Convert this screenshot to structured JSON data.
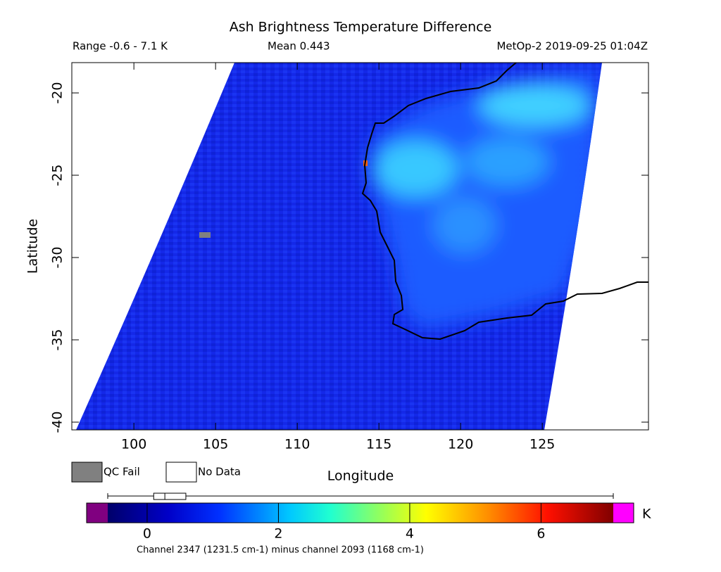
{
  "chart_data": {
    "type": "map",
    "title": "Ash Brightness Temperature Difference",
    "range_label": "Range -0.6 - 7.1 K",
    "mean_label": "Mean 0.443",
    "satellite_label": "MetOp-2 2019-09-25 01:04Z",
    "x_label": "Longitude",
    "y_label": "Latitude",
    "xlim": [
      96.2,
      131.5
    ],
    "ylim": [
      -40.47,
      -18.16
    ],
    "xticks": [
      100,
      105,
      110,
      115,
      120,
      125
    ],
    "yticks": [
      -20,
      -25,
      -30,
      -35,
      -40
    ],
    "legend": [
      "QC Fail",
      "No Data"
    ],
    "legend_colors": [
      "#808080",
      "#ffffff"
    ],
    "colorbar_lim": [
      -0.6,
      7.1
    ],
    "colorbar_ticks": [
      0,
      2,
      4,
      6
    ],
    "colorbar_unit": "K",
    "under_color": "#800080",
    "over_color": "#ff00ff",
    "box_plot": {
      "min": -0.6,
      "q1": 0.1,
      "median": 0.27,
      "q3": 0.59,
      "max": 7.1
    },
    "caption": "Channel 2347 (1231.5 cm-1) minus channel 2093 (1168 cm-1)"
  }
}
